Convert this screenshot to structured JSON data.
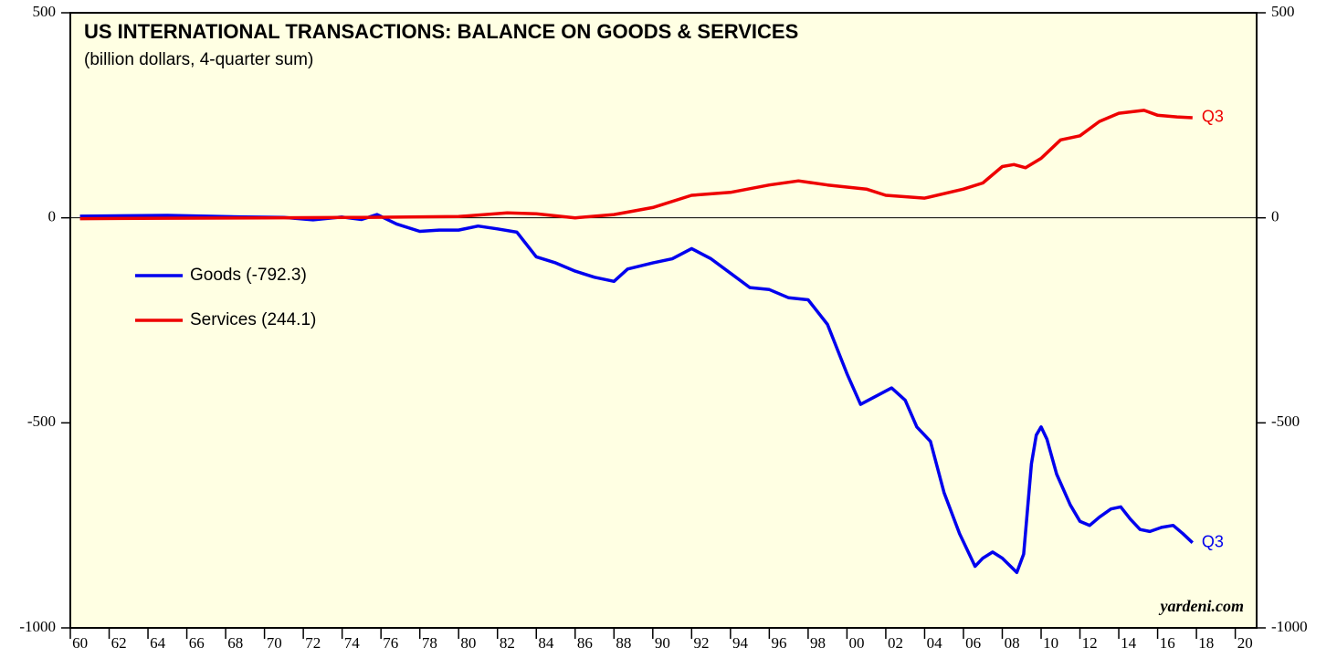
{
  "chart_data": {
    "type": "line",
    "title": "US INTERNATIONAL TRANSACTIONS: BALANCE ON GOODS & SERVICES",
    "subtitle": "(billion dollars, 4-quarter sum)",
    "source": "yardeni.com",
    "xlim": [
      1960,
      2021.1
    ],
    "xticks": [
      {
        "value": 1960,
        "label": "60"
      },
      {
        "value": 1962,
        "label": "62"
      },
      {
        "value": 1964,
        "label": "64"
      },
      {
        "value": 1966,
        "label": "66"
      },
      {
        "value": 1968,
        "label": "68"
      },
      {
        "value": 1970,
        "label": "70"
      },
      {
        "value": 1972,
        "label": "72"
      },
      {
        "value": 1974,
        "label": "74"
      },
      {
        "value": 1976,
        "label": "76"
      },
      {
        "value": 1978,
        "label": "78"
      },
      {
        "value": 1980,
        "label": "80"
      },
      {
        "value": 1982,
        "label": "82"
      },
      {
        "value": 1984,
        "label": "84"
      },
      {
        "value": 1986,
        "label": "86"
      },
      {
        "value": 1988,
        "label": "88"
      },
      {
        "value": 1990,
        "label": "90"
      },
      {
        "value": 1992,
        "label": "92"
      },
      {
        "value": 1994,
        "label": "94"
      },
      {
        "value": 1996,
        "label": "96"
      },
      {
        "value": 1998,
        "label": "98"
      },
      {
        "value": 2000,
        "label": "00"
      },
      {
        "value": 2002,
        "label": "02"
      },
      {
        "value": 2004,
        "label": "04"
      },
      {
        "value": 2006,
        "label": "06"
      },
      {
        "value": 2008,
        "label": "08"
      },
      {
        "value": 2010,
        "label": "10"
      },
      {
        "value": 2012,
        "label": "12"
      },
      {
        "value": 2014,
        "label": "14"
      },
      {
        "value": 2016,
        "label": "16"
      },
      {
        "value": 2018,
        "label": "18"
      },
      {
        "value": 2020,
        "label": "20"
      }
    ],
    "ylim": [
      -1000,
      500
    ],
    "yticks": [
      -1000,
      -500,
      0,
      500
    ],
    "zero_line": true,
    "series": [
      {
        "name": "Goods (-792.3)",
        "color": "#0000ee",
        "end_label": "Q3",
        "x": [
          1960.5,
          1963,
          1965,
          1967,
          1969,
          1971,
          1972.5,
          1974,
          1975,
          1975.8,
          1976.8,
          1978,
          1979,
          1980,
          1981,
          1982,
          1983,
          1984,
          1985,
          1986,
          1987,
          1988,
          1988.7,
          1990,
          1991,
          1992,
          1993,
          1994,
          1995,
          1996,
          1997,
          1998,
          1999,
          2000,
          2000.7,
          2001.5,
          2002.3,
          2003,
          2003.6,
          2004.3,
          2005,
          2005.8,
          2006.6,
          2007,
          2007.5,
          2008,
          2008.75,
          2009.1,
          2009.5,
          2009.75,
          2010,
          2010.3,
          2010.8,
          2011.5,
          2012,
          2012.5,
          2013,
          2013.6,
          2014.1,
          2014.6,
          2015.1,
          2015.6,
          2016.2,
          2016.8,
          2017.3,
          2017.8
        ],
        "values": [
          4,
          5,
          6,
          4,
          2,
          1,
          -5,
          2,
          -4,
          8,
          -15,
          -33,
          -30,
          -30,
          -20,
          -27,
          -35,
          -95,
          -110,
          -130,
          -145,
          -155,
          -125,
          -110,
          -100,
          -75,
          -100,
          -135,
          -170,
          -175,
          -195,
          -200,
          -260,
          -380,
          -455,
          -435,
          -415,
          -445,
          -510,
          -545,
          -670,
          -770,
          -850,
          -830,
          -815,
          -830,
          -865,
          -820,
          -600,
          -530,
          -510,
          -540,
          -625,
          -700,
          -740,
          -750,
          -730,
          -710,
          -705,
          -735,
          -760,
          -765,
          -755,
          -750,
          -770,
          -792.3
        ]
      },
      {
        "name": "Services (244.1)",
        "color": "#ee0000",
        "end_label": "Q3",
        "x": [
          1960.5,
          1965,
          1970,
          1975,
          1980,
          1982.5,
          1984,
          1986,
          1988,
          1990,
          1992,
          1994,
          1996,
          1997.5,
          1999,
          2001,
          2002,
          2004,
          2006,
          2007,
          2008,
          2008.6,
          2009.2,
          2010,
          2011,
          2012,
          2013,
          2014,
          2015.3,
          2016,
          2017,
          2017.8
        ],
        "values": [
          -2,
          -1,
          0,
          1,
          3,
          12,
          10,
          0,
          8,
          25,
          55,
          62,
          80,
          90,
          80,
          70,
          55,
          48,
          70,
          85,
          125,
          130,
          122,
          145,
          190,
          200,
          235,
          255,
          262,
          250,
          246,
          244.1
        ]
      }
    ]
  }
}
